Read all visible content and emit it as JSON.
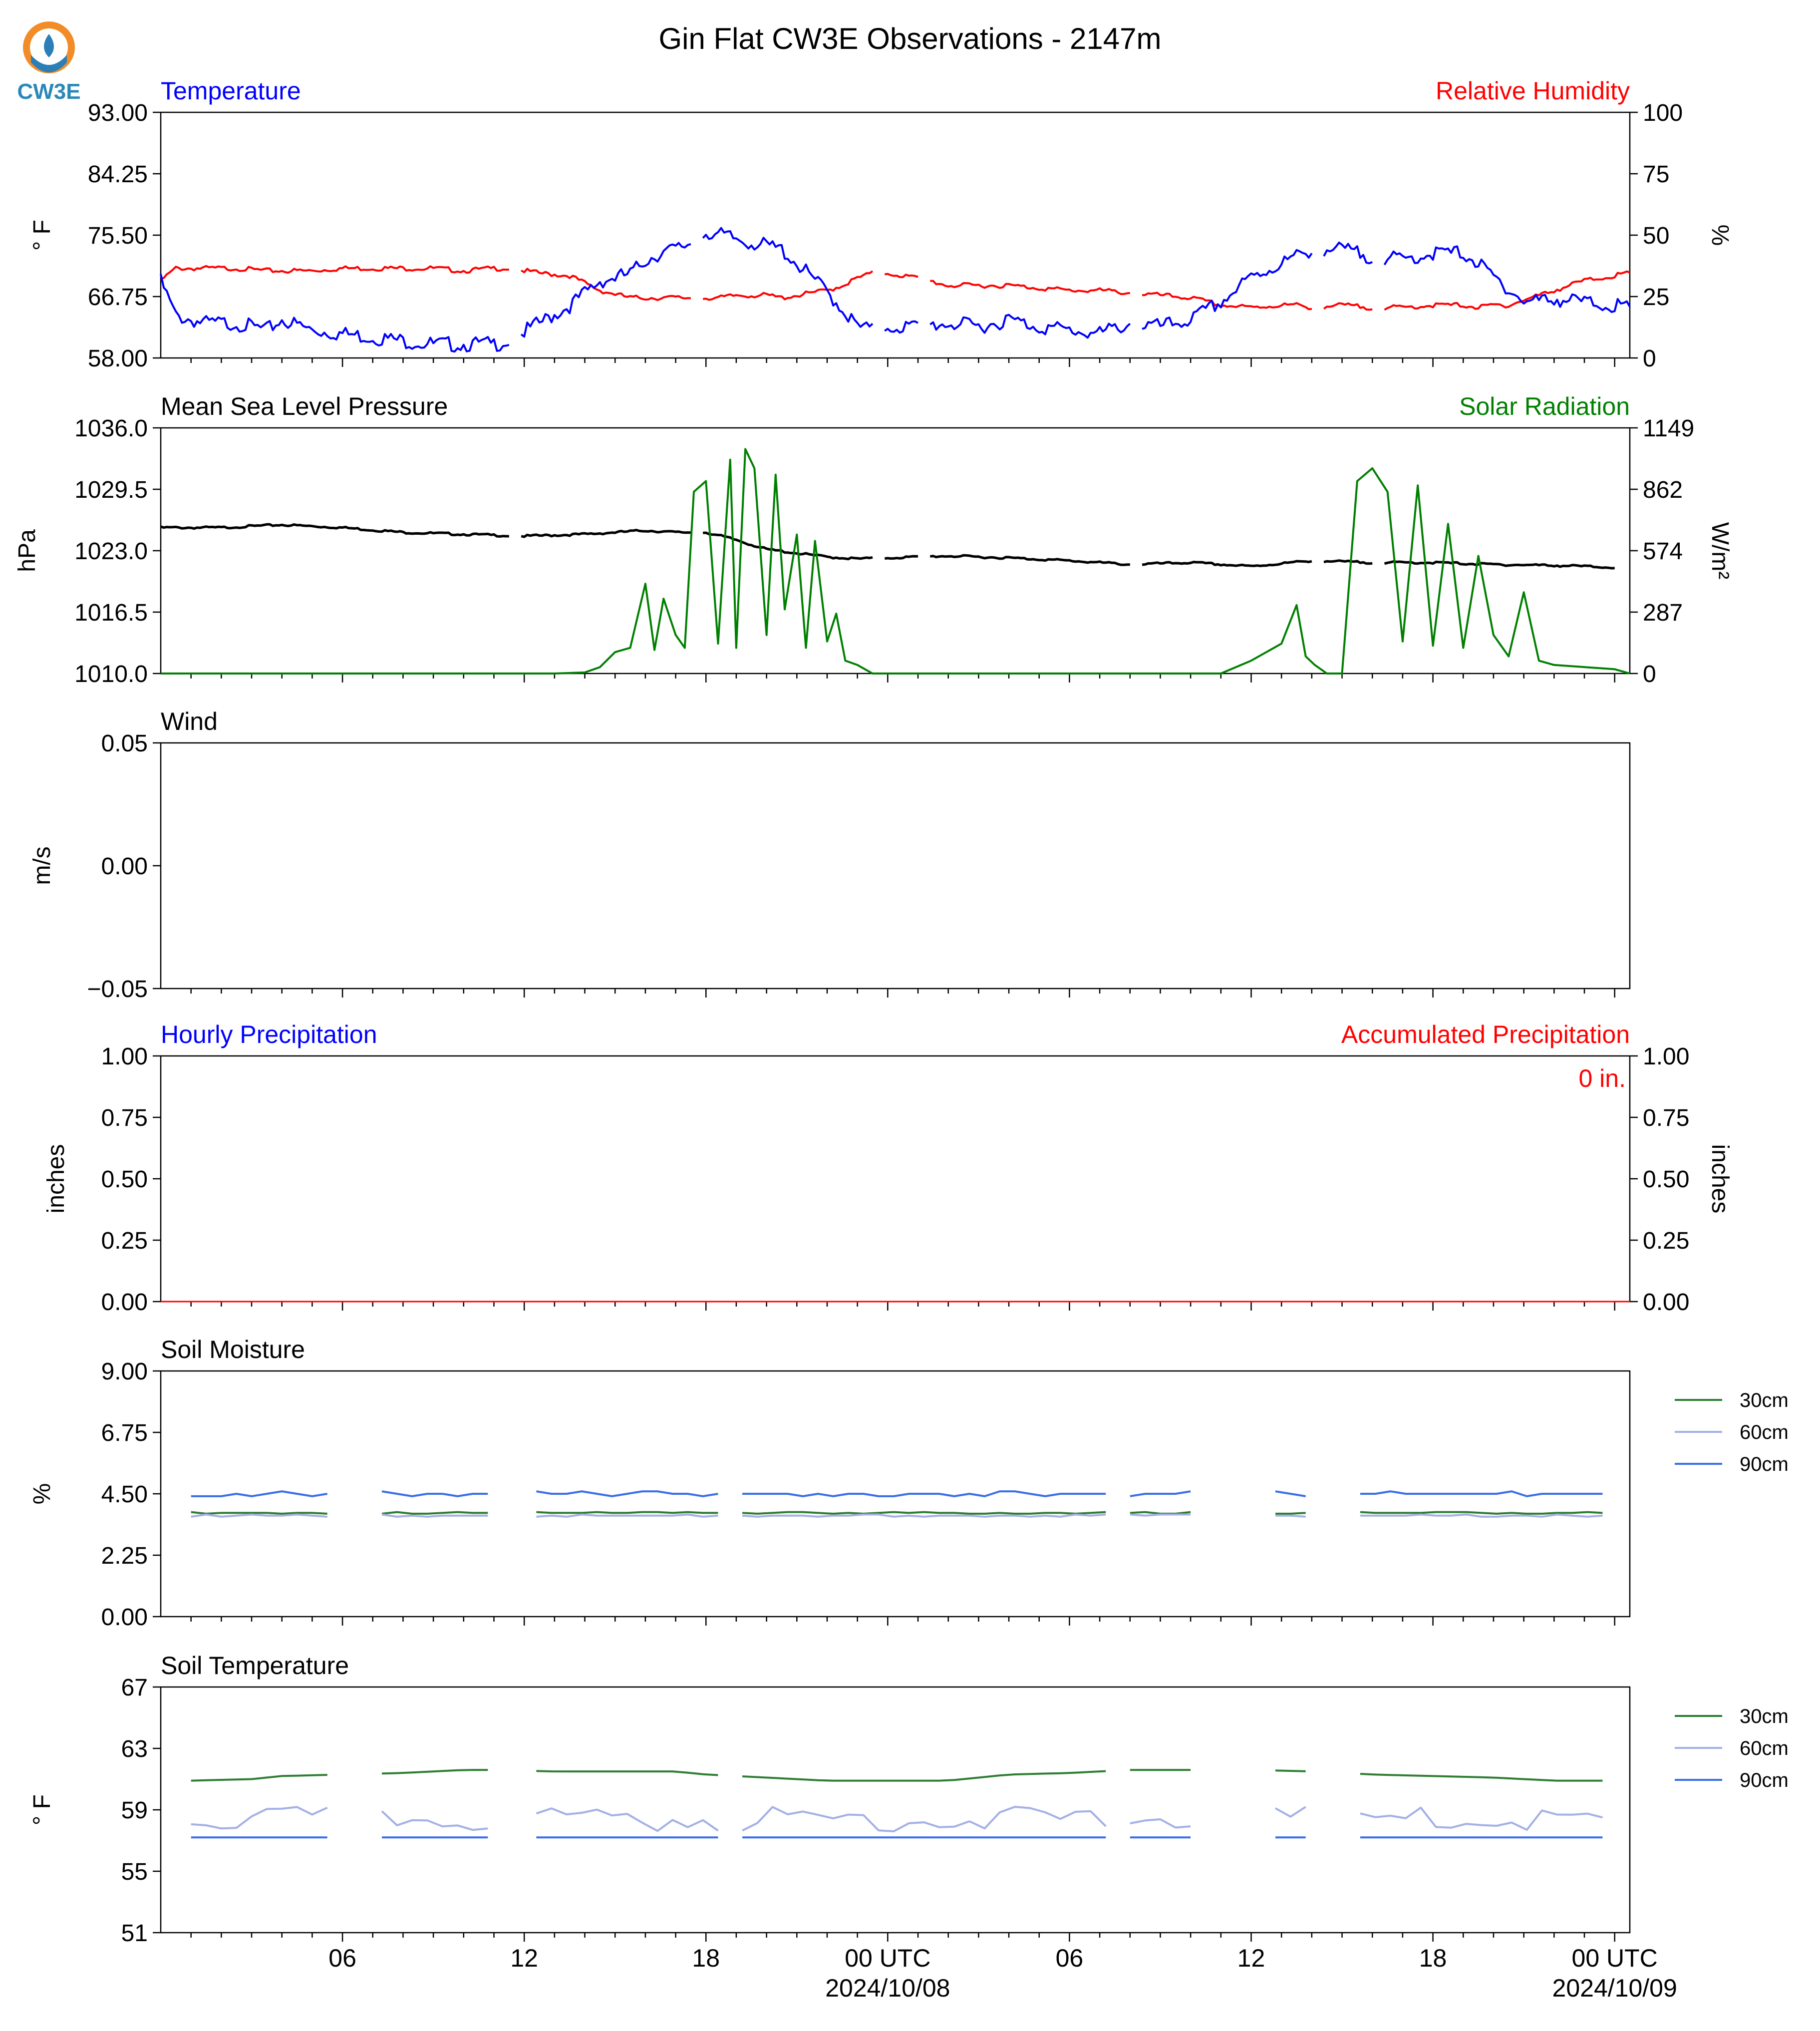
{
  "title": "Gin Flat CW3E Observations - 2147m",
  "logo": {
    "text": "CW3E",
    "icon": "cw3e-logo-icon"
  },
  "x_axis": {
    "ticks": [
      "06",
      "12",
      "18",
      "00 UTC",
      "06",
      "12",
      "18",
      "00 UTC"
    ],
    "dates": [
      "2024/10/08",
      "2024/10/09"
    ]
  },
  "colors": {
    "temperature": "#0000ff",
    "humidity": "#ff0000",
    "pressure": "#000000",
    "solar": "#008000",
    "soil_30cm": "#2e7d32",
    "soil_60cm": "#a4b0e6",
    "soil_90cm": "#3a6ee8"
  },
  "chart_data": [
    {
      "type": "line",
      "left_label": "Temperature",
      "right_label": "Relative Humidity",
      "ylabel": "° F",
      "ylabel_right": "%",
      "ylim": [
        58.0,
        93.0
      ],
      "ylim_right": [
        0,
        100
      ],
      "yticks": [
        "58.00",
        "66.75",
        "75.50",
        "84.25",
        "93.00"
      ],
      "yticks_right": [
        "0",
        "25",
        "50",
        "75",
        "100"
      ],
      "x": [
        0,
        0.5,
        1.5,
        2.5,
        3.5,
        4,
        5,
        6,
        7,
        8,
        9,
        10,
        11,
        11.5,
        12.5,
        13.5,
        14.5,
        15.5,
        16,
        16.5,
        17,
        17.5,
        18,
        18.5,
        19,
        19.5,
        20,
        20.5,
        21,
        21.5,
        22,
        22.5,
        23,
        23.5,
        24,
        25,
        26,
        27,
        28,
        29,
        30,
        31,
        32,
        33,
        34,
        35,
        36,
        37,
        37.5,
        38,
        39,
        40,
        41,
        42,
        43,
        43.5,
        44,
        44.5,
        45,
        46,
        47,
        48,
        48.5
      ],
      "series": [
        {
          "name": "Temperature",
          "values": [
            69.5,
            64.5,
            63.5,
            63.5,
            62.5,
            64.0,
            62.5,
            62.0,
            61.5,
            61.0,
            60.5,
            60.5,
            60.5,
            61.0,
            63.5,
            66.0,
            69.5,
            70.5,
            72.5,
            73.5,
            74.0,
            75.0,
            76.5,
            76.0,
            75.5,
            75.0,
            74.5,
            74.0,
            72.0,
            70.0,
            68.0,
            65.5,
            63.0,
            62.5,
            63.0,
            63.0,
            63.5,
            63.0,
            64.0,
            63.0,
            62.5,
            62.0,
            63.5,
            63.0,
            64.0,
            66.5,
            70.0,
            72.0,
            73.0,
            74.0,
            74.0,
            73.0,
            72.5,
            73.5,
            73.5,
            72.0,
            70.0,
            68.5,
            66.5,
            67.0,
            66.5,
            66.0,
            65.5
          ],
          "gaps_after": [
            11.5,
            17.5,
            23.5,
            25,
            32,
            38,
            40
          ]
        },
        {
          "name": "Relative Humidity",
          "values": [
            32,
            37,
            37,
            37,
            36,
            36,
            36,
            37,
            37,
            37,
            37,
            36,
            37,
            37,
            35,
            34,
            28,
            25,
            25,
            25,
            25,
            25,
            25,
            25,
            26,
            26,
            26,
            25,
            26,
            27,
            28,
            30,
            33,
            35,
            35,
            33,
            30,
            30,
            30,
            29,
            28,
            28,
            27,
            26,
            25,
            22,
            21,
            22,
            22,
            21,
            22,
            21,
            21,
            22,
            22,
            21,
            22,
            22,
            24,
            28,
            32,
            34,
            35
          ],
          "gaps_after": [
            11.5,
            17.5,
            23.5,
            25,
            32,
            38,
            40
          ]
        }
      ]
    },
    {
      "type": "line",
      "left_label": "Mean Sea Level Pressure",
      "right_label": "Solar Radiation",
      "ylabel": "hPa",
      "ylabel_right": "W/m²",
      "ylim": [
        1010.0,
        1036.0
      ],
      "ylim_right": [
        0,
        1149
      ],
      "yticks": [
        "1010.0",
        "1016.5",
        "1023.0",
        "1029.5",
        "1036.0"
      ],
      "yticks_right": [
        "0",
        "287",
        "574",
        "862",
        "1149"
      ],
      "pressure": {
        "x": [
          0,
          2,
          4,
          6,
          8,
          10,
          12,
          14,
          16,
          17,
          18,
          19,
          20,
          21,
          22,
          23,
          24,
          26,
          28,
          30,
          32,
          34,
          36,
          38,
          40,
          42,
          44,
          46,
          48
        ],
        "values": [
          1025.5,
          1025.5,
          1025.8,
          1025.5,
          1025.0,
          1024.8,
          1024.6,
          1024.8,
          1025.2,
          1025.0,
          1025.0,
          1024.2,
          1023.2,
          1022.8,
          1022.4,
          1022.2,
          1022.3,
          1022.5,
          1022.3,
          1022.0,
          1021.6,
          1021.8,
          1021.4,
          1022.0,
          1021.8,
          1021.8,
          1021.6,
          1021.5,
          1021.3
        ]
      },
      "solar": {
        "x": [
          0,
          6,
          12,
          13,
          14,
          14.5,
          15,
          15.5,
          16,
          16.3,
          16.6,
          17,
          17.3,
          17.6,
          18,
          18.4,
          18.8,
          19,
          19.3,
          19.6,
          20,
          20.3,
          20.6,
          21,
          21.3,
          21.6,
          22,
          22.3,
          22.6,
          23,
          23.5,
          24,
          25,
          30,
          35,
          36,
          37,
          37.5,
          37.8,
          38.1,
          38.5,
          39,
          39.5,
          40,
          40.5,
          41,
          41.5,
          42,
          42.5,
          43,
          43.5,
          44,
          44.5,
          45,
          45.5,
          46,
          48,
          48.5
        ],
        "values": [
          0,
          0,
          0,
          0,
          5,
          30,
          100,
          120,
          420,
          110,
          350,
          180,
          120,
          850,
          900,
          140,
          1000,
          120,
          1050,
          960,
          180,
          930,
          300,
          650,
          120,
          620,
          150,
          280,
          60,
          40,
          0,
          0,
          0,
          0,
          0,
          60,
          140,
          320,
          80,
          40,
          0,
          0,
          900,
          960,
          850,
          150,
          880,
          130,
          700,
          120,
          550,
          180,
          80,
          380,
          60,
          40,
          20,
          0
        ]
      }
    },
    {
      "type": "line",
      "left_label": "Wind",
      "ylabel": "m/s",
      "ylim": [
        -0.055,
        0.055
      ],
      "yticks": [
        "−0.05",
        "0.00",
        "0.05"
      ],
      "series": []
    },
    {
      "type": "line",
      "left_label": "Hourly Precipitation",
      "right_label": "Accumulated Precipitation",
      "ylabel": "inches",
      "ylabel_right": "inches",
      "ylim": [
        0.0,
        1.0
      ],
      "ylim_right": [
        0.0,
        1.0
      ],
      "yticks": [
        "0.00",
        "0.25",
        "0.50",
        "0.75",
        "1.00"
      ],
      "yticks_right": [
        "0.00",
        "0.25",
        "0.50",
        "0.75",
        "1.00"
      ],
      "annotation": "0 in.",
      "hourly": [
        0,
        0
      ],
      "accumulated": [
        0,
        0
      ]
    },
    {
      "type": "line",
      "left_label": "Soil Moisture",
      "ylabel": "%",
      "ylim": [
        0.0,
        9.0
      ],
      "yticks": [
        "0.00",
        "2.25",
        "4.50",
        "6.75",
        "9.00"
      ],
      "series": [
        {
          "name": "30cm",
          "value": 3.8
        },
        {
          "name": "60cm",
          "value": 3.7
        },
        {
          "name": "90cm",
          "value": 4.5
        }
      ]
    },
    {
      "type": "line",
      "left_label": "Soil Temperature",
      "ylabel": "° F",
      "ylim": [
        51,
        67
      ],
      "yticks": [
        "51",
        "55",
        "59",
        "63",
        "67"
      ],
      "series": [
        {
          "name": "30cm",
          "x": [
            1,
            3,
            4,
            6,
            8,
            10,
            11,
            13,
            14,
            16,
            17,
            18,
            20,
            22,
            24,
            26,
            28,
            30,
            32,
            34,
            36,
            38,
            40,
            42,
            44,
            46,
            47,
            48
          ],
          "values": [
            60.9,
            61.0,
            61.2,
            61.3,
            61.4,
            61.6,
            61.6,
            61.5,
            61.5,
            61.5,
            61.5,
            61.3,
            61.1,
            60.9,
            60.9,
            60.9,
            61.3,
            61.4,
            61.6,
            61.6,
            61.6,
            61.5,
            61.3,
            61.2,
            61.1,
            60.9,
            60.9,
            60.9
          ]
        },
        {
          "name": "60cm",
          "value": 58.8
        },
        {
          "name": "90cm",
          "value": 57.2
        }
      ]
    }
  ],
  "legend": [
    "30cm",
    "60cm",
    "90cm"
  ]
}
